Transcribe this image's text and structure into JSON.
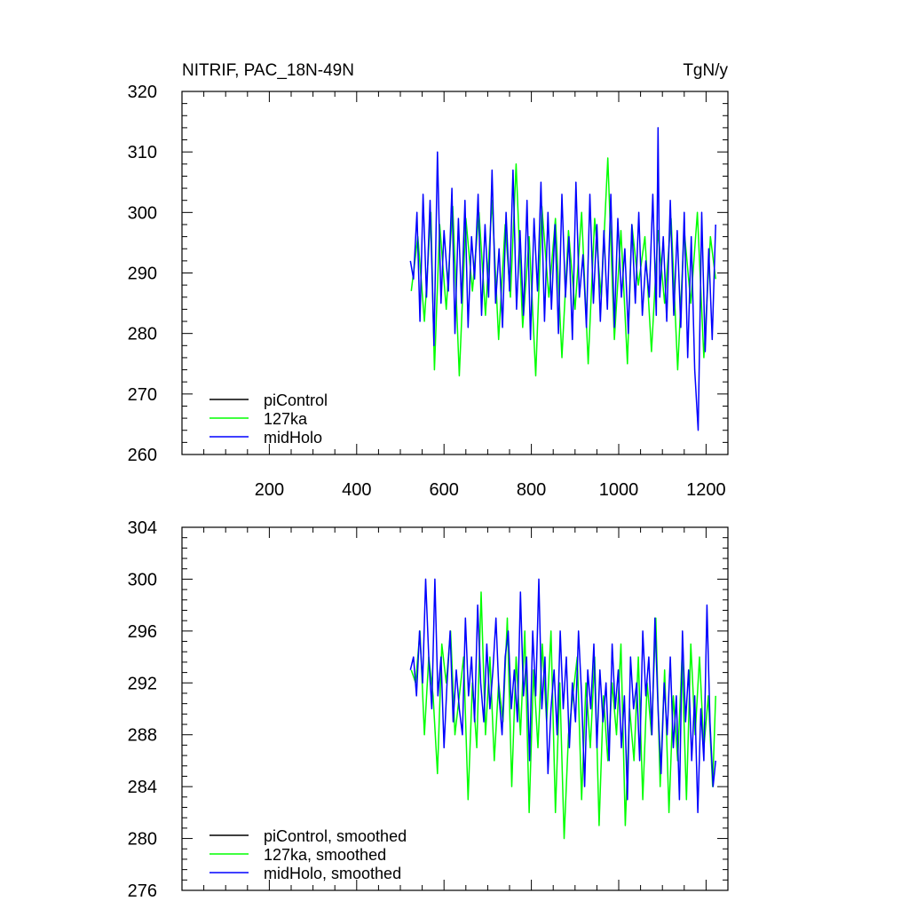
{
  "figure": {
    "title_left": "NITRIF, PAC_18N-49N",
    "title_right": "TgN/y"
  },
  "chart_data": [
    {
      "type": "line",
      "panel": "top",
      "title": "NITRIF, PAC_18N-49N",
      "units": "TgN/y",
      "xlim": [
        0,
        1250
      ],
      "ylim": [
        260,
        320
      ],
      "x_ticks": [
        200,
        400,
        600,
        800,
        1000,
        1200
      ],
      "x_tick_labels": [
        "200",
        "400",
        "600",
        "800",
        "1000",
        "1200"
      ],
      "y_ticks": [
        260,
        270,
        280,
        290,
        300,
        310,
        320
      ],
      "y_tick_labels": [
        "260",
        "270",
        "280",
        "290",
        "300",
        "310",
        "320"
      ],
      "legend": {
        "position": "bottom-left",
        "entries": [
          "piControl",
          "127ka",
          "midHolo"
        ]
      },
      "series": [
        {
          "name": "piControl",
          "color": "#000000",
          "x": [],
          "values": []
        },
        {
          "name": "127ka",
          "color": "#00ff00",
          "x": [
            525,
            540,
            555,
            570,
            578,
            590,
            605,
            620,
            635,
            650,
            665,
            680,
            695,
            710,
            725,
            740,
            752,
            765,
            780,
            795,
            810,
            824,
            840,
            855,
            870,
            885,
            900,
            915,
            930,
            945,
            960,
            975,
            990,
            1005,
            1020,
            1030,
            1045,
            1060,
            1075,
            1090,
            1105,
            1120,
            1135,
            1150,
            1165,
            1180,
            1195,
            1210,
            1222
          ],
          "values": [
            287,
            296,
            282,
            300,
            274,
            298,
            284,
            301,
            273,
            299,
            287,
            300,
            283,
            302,
            279,
            298,
            286,
            308,
            281,
            296,
            273,
            301,
            286,
            299,
            276,
            297,
            284,
            300,
            275,
            299,
            286,
            309,
            279,
            297,
            275,
            298,
            288,
            296,
            277,
            297,
            285,
            299,
            274,
            297,
            285,
            300,
            276,
            296,
            289
          ]
        },
        {
          "name": "midHolo",
          "color": "#0000ff",
          "x": [
            523,
            530,
            538,
            545,
            552,
            560,
            568,
            577,
            585,
            593,
            600,
            610,
            618,
            625,
            633,
            640,
            648,
            655,
            663,
            670,
            678,
            686,
            694,
            702,
            710,
            718,
            726,
            734,
            742,
            750,
            758,
            766,
            774,
            782,
            790,
            798,
            806,
            814,
            822,
            830,
            838,
            846,
            854,
            862,
            870,
            878,
            886,
            894,
            902,
            910,
            918,
            926,
            934,
            942,
            950,
            958,
            966,
            974,
            982,
            990,
            998,
            1006,
            1014,
            1022,
            1030,
            1038,
            1046,
            1054,
            1062,
            1070,
            1078,
            1086,
            1090,
            1094,
            1102,
            1110,
            1118,
            1126,
            1134,
            1142,
            1150,
            1158,
            1166,
            1174,
            1182,
            1190,
            1198,
            1206,
            1214,
            1222
          ],
          "values": [
            292,
            289,
            300,
            282,
            303,
            286,
            302,
            278,
            310,
            285,
            297,
            287,
            304,
            280,
            299,
            285,
            302,
            281,
            296,
            289,
            303,
            283,
            298,
            286,
            307,
            285,
            294,
            281,
            300,
            287,
            307,
            284,
            297,
            283,
            302,
            279,
            299,
            287,
            305,
            282,
            300,
            284,
            298,
            280,
            303,
            286,
            296,
            279,
            305,
            286,
            293,
            281,
            303,
            285,
            298,
            282,
            297,
            284,
            303,
            281,
            299,
            286,
            294,
            280,
            298,
            285,
            300,
            283,
            292,
            286,
            303,
            283,
            314,
            286,
            296,
            282,
            302,
            283,
            297,
            281,
            300,
            276,
            296,
            274,
            264,
            300,
            277,
            294,
            279,
            298
          ]
        }
      ]
    },
    {
      "type": "line",
      "panel": "bottom",
      "xlim": [
        0,
        1250
      ],
      "ylim": [
        276,
        304
      ],
      "x_ticks": [
        200,
        400,
        600,
        800,
        1000,
        1200
      ],
      "y_ticks": [
        276,
        280,
        284,
        288,
        292,
        296,
        300,
        304
      ],
      "y_tick_labels": [
        "276",
        "280",
        "284",
        "288",
        "292",
        "296",
        "300",
        "304"
      ],
      "legend": {
        "position": "bottom-left",
        "entries": [
          "piControl, smoothed",
          "127ka, smoothed",
          "midHolo, smoothed"
        ]
      },
      "series": [
        {
          "name": "piControl, smoothed",
          "color": "#000000",
          "x": [],
          "values": []
        },
        {
          "name": "127ka, smoothed",
          "color": "#00ff00",
          "x": [
            525,
            535,
            545,
            555,
            565,
            575,
            585,
            595,
            605,
            615,
            625,
            635,
            645,
            655,
            665,
            675,
            685,
            695,
            705,
            715,
            725,
            735,
            745,
            755,
            765,
            775,
            785,
            795,
            805,
            815,
            825,
            835,
            845,
            855,
            865,
            875,
            885,
            895,
            905,
            915,
            925,
            935,
            945,
            955,
            965,
            975,
            985,
            995,
            1005,
            1015,
            1025,
            1035,
            1045,
            1055,
            1065,
            1075,
            1085,
            1095,
            1105,
            1115,
            1125,
            1135,
            1145,
            1155,
            1165,
            1175,
            1185,
            1195,
            1205,
            1215,
            1222
          ],
          "values": [
            293,
            292,
            296,
            288,
            294,
            291,
            285,
            295,
            292,
            296,
            288,
            291,
            294,
            283,
            292,
            287,
            299,
            288,
            294,
            286,
            292,
            289,
            297,
            284,
            294,
            288,
            296,
            282,
            293,
            287,
            295,
            289,
            296,
            282,
            292,
            280,
            288,
            291,
            294,
            283,
            292,
            287,
            294,
            281,
            291,
            286,
            292,
            288,
            295,
            281,
            290,
            286,
            294,
            283,
            292,
            288,
            297,
            284,
            293,
            282,
            291,
            286,
            294,
            283,
            295,
            288,
            294,
            287,
            291,
            284,
            291
          ]
        },
        {
          "name": "midHolo, smoothed",
          "color": "#0000ff",
          "x": [
            523,
            530,
            537,
            544,
            551,
            558,
            565,
            572,
            579,
            586,
            593,
            600,
            607,
            614,
            621,
            628,
            635,
            642,
            649,
            656,
            663,
            670,
            677,
            684,
            691,
            698,
            705,
            712,
            719,
            726,
            733,
            740,
            747,
            754,
            761,
            768,
            775,
            782,
            789,
            796,
            803,
            810,
            817,
            824,
            831,
            838,
            845,
            852,
            859,
            866,
            873,
            880,
            887,
            894,
            901,
            908,
            915,
            922,
            929,
            936,
            943,
            950,
            957,
            964,
            971,
            978,
            985,
            992,
            999,
            1006,
            1013,
            1020,
            1027,
            1034,
            1041,
            1048,
            1055,
            1062,
            1069,
            1076,
            1083,
            1090,
            1097,
            1104,
            1111,
            1118,
            1125,
            1132,
            1139,
            1146,
            1153,
            1160,
            1167,
            1174,
            1181,
            1188,
            1195,
            1202,
            1209,
            1216,
            1222
          ],
          "values": [
            293,
            294,
            291,
            296,
            292,
            300,
            294,
            290,
            300,
            291,
            294,
            287,
            292,
            296,
            289,
            293,
            290,
            288,
            297,
            291,
            294,
            289,
            298,
            292,
            289,
            295,
            290,
            293,
            297,
            291,
            288,
            294,
            296,
            290,
            293,
            289,
            299,
            291,
            294,
            286,
            296,
            291,
            300,
            290,
            294,
            285,
            290,
            293,
            288,
            296,
            290,
            294,
            287,
            292,
            289,
            296,
            291,
            284,
            293,
            290,
            295,
            287,
            293,
            289,
            292,
            286,
            295,
            290,
            293,
            287,
            291,
            283,
            294,
            290,
            292,
            286,
            296,
            291,
            294,
            288,
            297,
            290,
            285,
            292,
            288,
            294,
            287,
            291,
            283,
            296,
            289,
            293,
            286,
            291,
            282,
            290,
            286,
            298,
            289,
            284,
            286
          ]
        }
      ]
    }
  ]
}
